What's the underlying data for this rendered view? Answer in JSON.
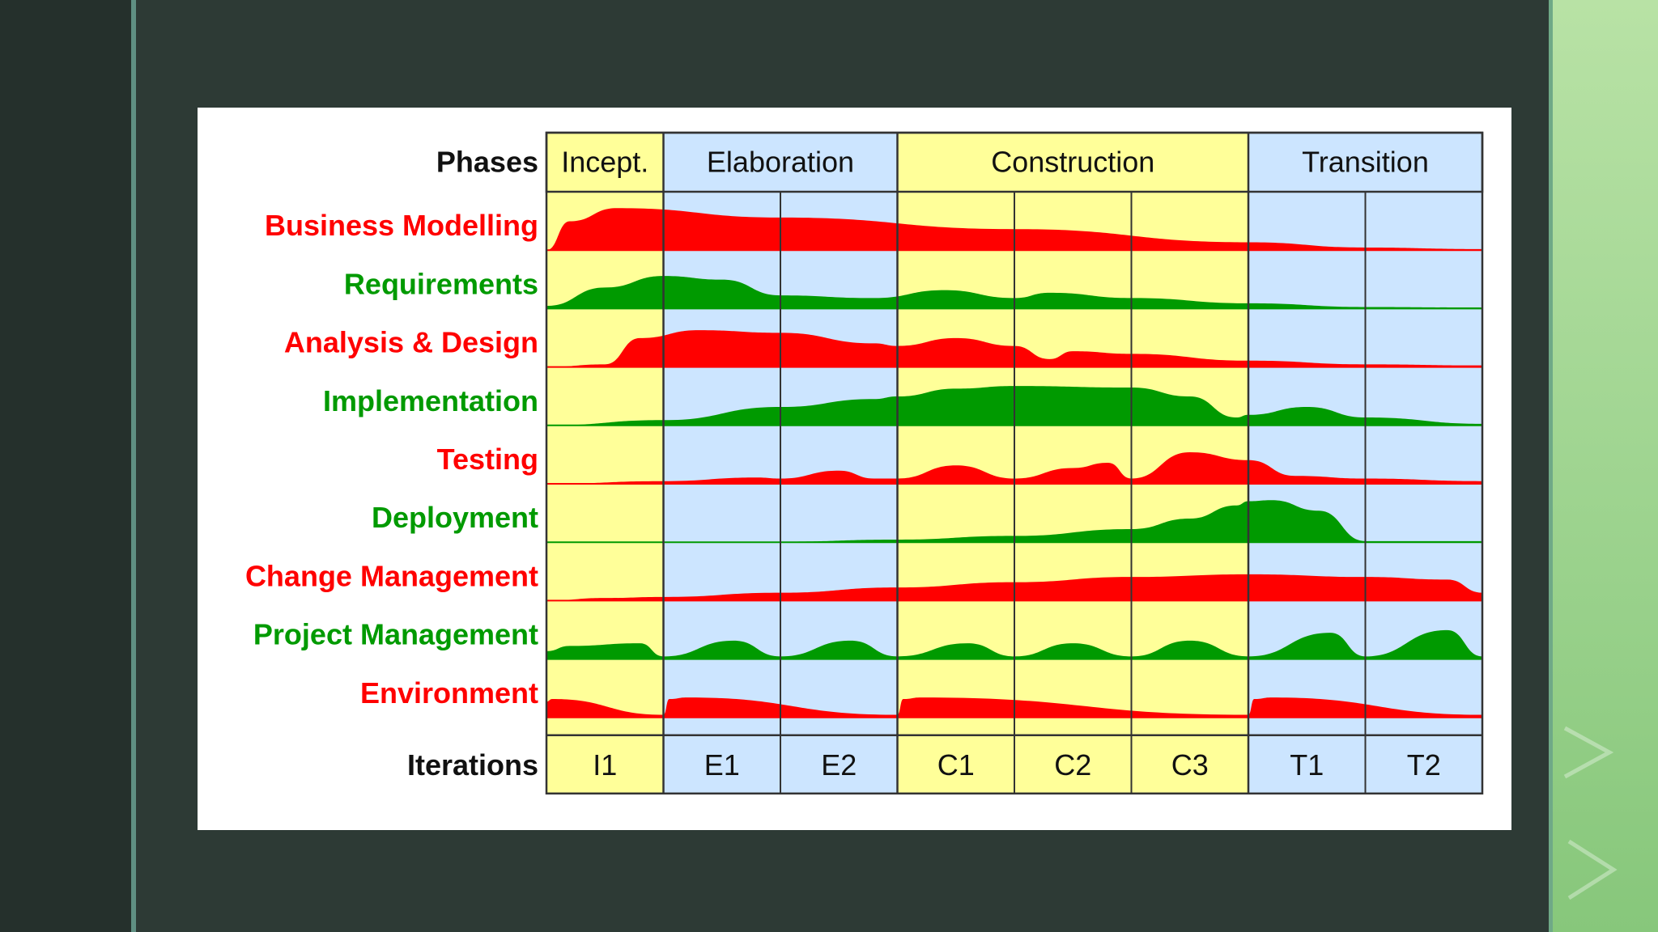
{
  "colors": {
    "yellow": "#ffff99",
    "blue": "#cce5ff",
    "red": "#ff0000",
    "green": "#009a00",
    "grid": "#333333",
    "text": "#111111",
    "background": "#2d3a35",
    "accent_green": "#a2d693"
  },
  "labels": {
    "phases_header": "Phases",
    "iterations_header": "Iterations"
  },
  "phases": [
    {
      "name": "Incept.",
      "columns": 1,
      "shade": "yellow"
    },
    {
      "name": "Elaboration",
      "columns": 2,
      "shade": "blue"
    },
    {
      "name": "Construction",
      "columns": 3,
      "shade": "yellow"
    },
    {
      "name": "Transition",
      "columns": 2,
      "shade": "blue"
    }
  ],
  "iterations": [
    "I1",
    "E1",
    "E2",
    "C1",
    "C2",
    "C3",
    "T1",
    "T2"
  ],
  "disciplines": [
    {
      "name": "Business Modelling",
      "color": "red",
      "profile": [
        [
          0,
          0
        ],
        [
          0.2,
          0.55
        ],
        [
          0.6,
          0.8
        ],
        [
          2,
          0.62
        ],
        [
          4,
          0.4
        ],
        [
          6,
          0.15
        ],
        [
          7,
          0.05
        ],
        [
          8,
          0.02
        ]
      ]
    },
    {
      "name": "Requirements",
      "color": "green",
      "profile": [
        [
          0,
          0.05
        ],
        [
          0.5,
          0.4
        ],
        [
          1,
          0.62
        ],
        [
          1.5,
          0.55
        ],
        [
          2,
          0.25
        ],
        [
          2.8,
          0.2
        ],
        [
          3.4,
          0.35
        ],
        [
          4,
          0.2
        ],
        [
          4.3,
          0.3
        ],
        [
          5,
          0.2
        ],
        [
          6,
          0.1
        ],
        [
          7,
          0.03
        ],
        [
          8,
          0.02
        ]
      ]
    },
    {
      "name": "Analysis & Design",
      "color": "red",
      "profile": [
        [
          0,
          0
        ],
        [
          0.5,
          0.05
        ],
        [
          0.8,
          0.55
        ],
        [
          1.3,
          0.7
        ],
        [
          2,
          0.65
        ],
        [
          2.8,
          0.45
        ],
        [
          3,
          0.4
        ],
        [
          3.5,
          0.55
        ],
        [
          4,
          0.4
        ],
        [
          4.3,
          0.15
        ],
        [
          4.5,
          0.3
        ],
        [
          5,
          0.25
        ],
        [
          6,
          0.12
        ],
        [
          7,
          0.05
        ],
        [
          8,
          0.03
        ]
      ]
    },
    {
      "name": "Implementation",
      "color": "green",
      "profile": [
        [
          0,
          0
        ],
        [
          1,
          0.1
        ],
        [
          2,
          0.35
        ],
        [
          2.8,
          0.5
        ],
        [
          3,
          0.55
        ],
        [
          3.5,
          0.7
        ],
        [
          4,
          0.75
        ],
        [
          5,
          0.72
        ],
        [
          5.5,
          0.55
        ],
        [
          5.9,
          0.15
        ],
        [
          6,
          0.2
        ],
        [
          6.5,
          0.35
        ],
        [
          7,
          0.15
        ],
        [
          8,
          0.03
        ]
      ]
    },
    {
      "name": "Testing",
      "color": "red",
      "profile": [
        [
          0,
          0
        ],
        [
          1,
          0.05
        ],
        [
          1.8,
          0.12
        ],
        [
          2,
          0.1
        ],
        [
          2.5,
          0.25
        ],
        [
          2.8,
          0.1
        ],
        [
          3,
          0.1
        ],
        [
          3.5,
          0.35
        ],
        [
          4,
          0.1
        ],
        [
          4.5,
          0.3
        ],
        [
          4.8,
          0.4
        ],
        [
          5,
          0.1
        ],
        [
          5.5,
          0.6
        ],
        [
          6,
          0.45
        ],
        [
          6.4,
          0.15
        ],
        [
          7,
          0.1
        ],
        [
          8,
          0.05
        ]
      ]
    },
    {
      "name": "Deployment",
      "color": "green",
      "profile": [
        [
          0,
          0
        ],
        [
          2,
          0.01
        ],
        [
          3,
          0.05
        ],
        [
          4,
          0.12
        ],
        [
          5,
          0.25
        ],
        [
          5.5,
          0.45
        ],
        [
          5.9,
          0.7
        ],
        [
          6,
          0.78
        ],
        [
          6.2,
          0.8
        ],
        [
          6.6,
          0.6
        ],
        [
          7,
          0.02
        ],
        [
          8,
          0.02
        ]
      ]
    },
    {
      "name": "Change Management",
      "color": "red",
      "profile": [
        [
          0,
          0
        ],
        [
          0.5,
          0.05
        ],
        [
          1,
          0.07
        ],
        [
          2,
          0.15
        ],
        [
          3,
          0.25
        ],
        [
          4,
          0.35
        ],
        [
          5,
          0.45
        ],
        [
          6,
          0.5
        ],
        [
          7,
          0.45
        ],
        [
          7.7,
          0.4
        ],
        [
          8,
          0.15
        ]
      ]
    },
    {
      "name": "Project Management",
      "color": "green",
      "profile": [
        [
          0,
          0.15
        ],
        [
          0.2,
          0.25
        ],
        [
          0.8,
          0.3
        ],
        [
          1,
          0.05
        ],
        [
          1.6,
          0.35
        ],
        [
          2,
          0.05
        ],
        [
          2.6,
          0.35
        ],
        [
          3,
          0.05
        ],
        [
          3.6,
          0.3
        ],
        [
          4,
          0.05
        ],
        [
          4.5,
          0.3
        ],
        [
          5,
          0.05
        ],
        [
          5.5,
          0.35
        ],
        [
          6,
          0.05
        ],
        [
          6.7,
          0.5
        ],
        [
          7,
          0.05
        ],
        [
          7.7,
          0.55
        ],
        [
          8,
          0.05
        ]
      ]
    },
    {
      "name": "Environment",
      "color": "red",
      "profile": [
        [
          0,
          0.3
        ],
        [
          0.05,
          0.35
        ],
        [
          1,
          0.05
        ],
        [
          1.05,
          0.35
        ],
        [
          1.2,
          0.38
        ],
        [
          3,
          0.05
        ],
        [
          3.05,
          0.35
        ],
        [
          3.2,
          0.38
        ],
        [
          6,
          0.05
        ],
        [
          6.05,
          0.35
        ],
        [
          6.2,
          0.38
        ],
        [
          8,
          0.05
        ]
      ]
    }
  ]
}
